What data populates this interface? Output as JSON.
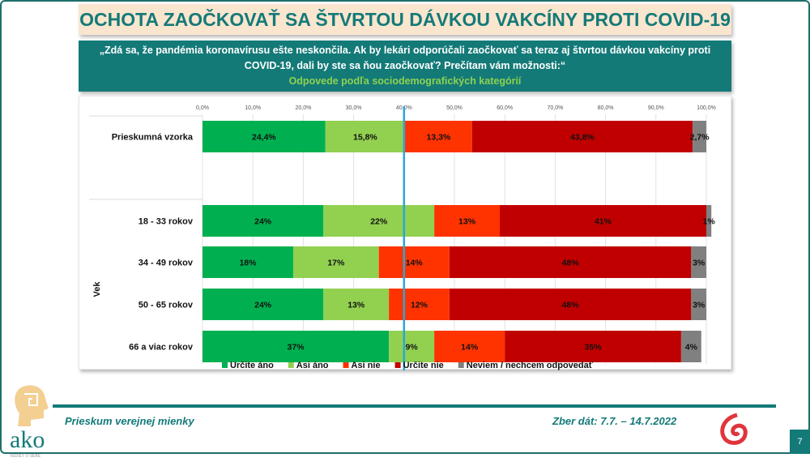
{
  "title": "OCHOTA ZAOČKOVAŤ SA ŠTVRTOU DÁVKOU VAKCÍNY PROTI COVID-19",
  "question": {
    "line1": "„Zdá sa, že pandémia koronavírusu ešte neskončila. Ak by lekári odporúčali zaočkovať sa teraz aj štvrtou dávkou vakcíny proti",
    "line2": "COVID-19, dali by ste sa ňou zaočkovať? Prečítam vám možnosti:“",
    "subtitle": "Odpovede podľa sociodemografických kategórií"
  },
  "chart_data": {
    "type": "bar",
    "orientation": "horizontal",
    "stacked": true,
    "xlim": [
      0,
      100
    ],
    "x_ticks": [
      "0,0%",
      "10,0%",
      "20,0%",
      "30,0%",
      "40,0%",
      "50,0%",
      "60,0%",
      "70,0%",
      "80,0%",
      "90,0%",
      "100,0%"
    ],
    "reference_line": {
      "x": 40,
      "color": "#2aa7d8"
    },
    "group_label": "Vek",
    "categories": [
      "Prieskumná vzorka",
      "18 - 33 rokov",
      "34 - 49 rokov",
      "50 - 65 rokov",
      "66 a viac rokov"
    ],
    "series": [
      {
        "name": "Určite áno",
        "color": "#00b050",
        "values": [
          24.4,
          24,
          18,
          24,
          37
        ],
        "labels": [
          "24,4%",
          "24%",
          "18%",
          "24%",
          "37%"
        ]
      },
      {
        "name": "Asi áno",
        "color": "#92d050",
        "values": [
          15.8,
          22,
          17,
          13,
          9
        ],
        "labels": [
          "15,8%",
          "22%",
          "17%",
          "13%",
          "9%"
        ]
      },
      {
        "name": "Asi nie",
        "color": "#ff3300",
        "values": [
          13.3,
          13,
          14,
          12,
          14
        ],
        "labels": [
          "13,3%",
          "13%",
          "14%",
          "12%",
          "14%"
        ]
      },
      {
        "name": "Určite nie",
        "color": "#c00000",
        "values": [
          43.8,
          41,
          48,
          48,
          35
        ],
        "labels": [
          "43,8%",
          "41%",
          "48%",
          "48%",
          "35%"
        ]
      },
      {
        "name": "Neviem / nechcem odpovedať",
        "color": "#808080",
        "values": [
          2.7,
          1,
          3,
          3,
          4
        ],
        "labels": [
          "2,7%",
          "1%",
          "3%",
          "3%",
          "4%"
        ]
      }
    ],
    "legend": "bottom"
  },
  "footer": {
    "left": "Prieskum verejnej mienky",
    "right": "Zber dát: 7.7. – 14.7.2022",
    "page": "7",
    "logo_text": "ako",
    "logo_tagline": "VEDIEŤ O SEBE"
  }
}
